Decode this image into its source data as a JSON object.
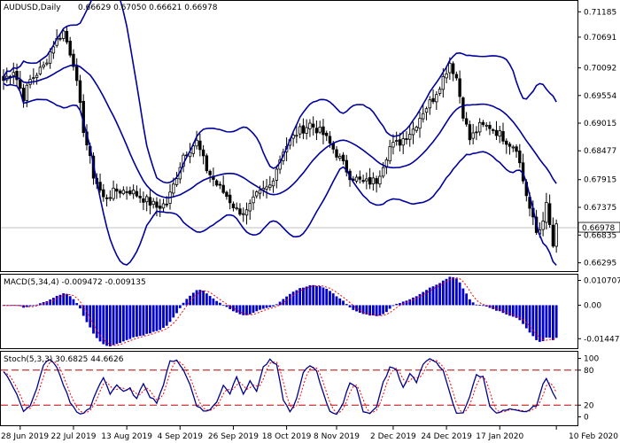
{
  "header": {
    "symbol_timeframe": "AUDUSD,Daily",
    "ohlc": "0.66629 0.67050 0.66621 0.66978"
  },
  "macd": {
    "label": "MACD(5,34,4) -0.009472 -0.009135"
  },
  "stoch": {
    "label": "Stoch(5,3,3) 30.6825 44.6626"
  },
  "colors": {
    "background": "#ffffff",
    "candle": "#000000",
    "bands": "#00009c",
    "macd_hist": "#0000c8",
    "signal": "#ff0000",
    "stoch_main": "#00008b",
    "stoch_levels": "#c00000",
    "current_price_line": "#c0c0c0"
  },
  "chart_data": [
    {
      "type": "candlestick",
      "name": "price",
      "bollinger_bands": true,
      "current_price_label": "0.66978",
      "current_price": 0.66978,
      "ylim": [
        0.6615,
        0.7138
      ],
      "y_ticks": [
        {
          "label": "0.71185",
          "value": 0.71185
        },
        {
          "label": "0.70691",
          "value": 0.70691
        },
        {
          "label": "0.70092",
          "value": 0.70092
        },
        {
          "label": "0.69554",
          "value": 0.69554
        },
        {
          "label": "0.69015",
          "value": 0.69015
        },
        {
          "label": "0.68477",
          "value": 0.68477
        },
        {
          "label": "0.67915",
          "value": 0.67915
        },
        {
          "label": "0.67375",
          "value": 0.67375
        },
        {
          "label": "0.66835",
          "value": 0.66835
        },
        {
          "label": "0.66295",
          "value": 0.66295
        }
      ],
      "x_ticks": [
        {
          "label": "28 Jun 2019",
          "index": 5
        },
        {
          "label": "22 Jul 2019",
          "index": 21
        },
        {
          "label": "13 Aug 2019",
          "index": 37
        },
        {
          "label": "4 Sep 2019",
          "index": 53
        },
        {
          "label": "26 Sep 2019",
          "index": 69
        },
        {
          "label": "18 Oct 2019",
          "index": 85
        },
        {
          "label": "8 Nov 2019",
          "index": 100
        },
        {
          "label": "2 Dec 2019",
          "index": 117
        },
        {
          "label": "24 Dec 2019",
          "index": 133
        },
        {
          "label": "17 Jan 2020",
          "index": 149
        },
        {
          "label": "10 Feb 2020",
          "index": 166
        }
      ],
      "close_keypoints": [
        [
          0,
          0.6985
        ],
        [
          3,
          0.7005
        ],
        [
          6,
          0.6952
        ],
        [
          8,
          0.6985
        ],
        [
          12,
          0.7012
        ],
        [
          15,
          0.7055
        ],
        [
          18,
          0.708
        ],
        [
          21,
          0.702
        ],
        [
          24,
          0.689
        ],
        [
          27,
          0.68
        ],
        [
          30,
          0.6755
        ],
        [
          34,
          0.677
        ],
        [
          38,
          0.677
        ],
        [
          42,
          0.6755
        ],
        [
          46,
          0.6738
        ],
        [
          49,
          0.6745
        ],
        [
          51,
          0.678
        ],
        [
          54,
          0.684
        ],
        [
          58,
          0.6865
        ],
        [
          61,
          0.6812
        ],
        [
          64,
          0.6782
        ],
        [
          67,
          0.676
        ],
        [
          70,
          0.6732
        ],
        [
          73,
          0.6728
        ],
        [
          76,
          0.676
        ],
        [
          80,
          0.678
        ],
        [
          84,
          0.685
        ],
        [
          88,
          0.6882
        ],
        [
          92,
          0.69
        ],
        [
          96,
          0.688
        ],
        [
          100,
          0.6842
        ],
        [
          104,
          0.68
        ],
        [
          108,
          0.6785
        ],
        [
          112,
          0.679
        ],
        [
          116,
          0.6855
        ],
        [
          119,
          0.6865
        ],
        [
          123,
          0.689
        ],
        [
          126,
          0.6925
        ],
        [
          129,
          0.695
        ],
        [
          132,
          0.699
        ],
        [
          134,
          0.702
        ],
        [
          136,
          0.699
        ],
        [
          138,
          0.692
        ],
        [
          140,
          0.687
        ],
        [
          143,
          0.6895
        ],
        [
          146,
          0.6895
        ],
        [
          149,
          0.688
        ],
        [
          152,
          0.6862
        ],
        [
          154,
          0.6855
        ],
        [
          156,
          0.679
        ],
        [
          158,
          0.6735
        ],
        [
          160,
          0.6688
        ],
        [
          161,
          0.6695
        ],
        [
          163,
          0.674
        ],
        [
          165,
          0.6662
        ],
        [
          166,
          0.6698
        ]
      ]
    },
    {
      "type": "bar",
      "name": "MACD(5,34,4)",
      "macd_value": -0.009472,
      "signal_value": -0.009135,
      "ylim": [
        -0.0182,
        0.0128
      ],
      "y_ticks": [
        {
          "label": "0.010707",
          "value": 0.010707
        },
        {
          "label": "0.00",
          "value": 0.0
        },
        {
          "label": "-0.014479",
          "value": -0.014479
        }
      ]
    },
    {
      "type": "line",
      "name": "Stoch(5,3,3)",
      "main_value": 30.6825,
      "signal_value": 44.6626,
      "ylim": [
        -13,
        110
      ],
      "levels": [
        20,
        80
      ],
      "y_ticks": [
        {
          "label": "100",
          "value": 100
        },
        {
          "label": "80",
          "value": 80
        },
        {
          "label": "20",
          "value": 20
        },
        {
          "label": "0",
          "value": 0
        }
      ],
      "main_keypoints": [
        [
          0,
          78
        ],
        [
          2,
          60
        ],
        [
          4,
          40
        ],
        [
          6,
          10
        ],
        [
          8,
          18
        ],
        [
          10,
          48
        ],
        [
          12,
          90
        ],
        [
          14,
          98
        ],
        [
          16,
          85
        ],
        [
          18,
          55
        ],
        [
          20,
          25
        ],
        [
          22,
          8
        ],
        [
          24,
          5
        ],
        [
          26,
          15
        ],
        [
          28,
          45
        ],
        [
          30,
          68
        ],
        [
          32,
          40
        ],
        [
          34,
          55
        ],
        [
          36,
          42
        ],
        [
          38,
          48
        ],
        [
          40,
          30
        ],
        [
          42,
          58
        ],
        [
          44,
          35
        ],
        [
          46,
          25
        ],
        [
          48,
          55
        ],
        [
          50,
          95
        ],
        [
          52,
          98
        ],
        [
          54,
          80
        ],
        [
          56,
          55
        ],
        [
          58,
          20
        ],
        [
          60,
          10
        ],
        [
          62,
          12
        ],
        [
          64,
          25
        ],
        [
          66,
          55
        ],
        [
          68,
          40
        ],
        [
          70,
          70
        ],
        [
          72,
          40
        ],
        [
          74,
          60
        ],
        [
          76,
          45
        ],
        [
          78,
          85
        ],
        [
          80,
          97
        ],
        [
          82,
          88
        ],
        [
          84,
          30
        ],
        [
          86,
          8
        ],
        [
          88,
          30
        ],
        [
          90,
          75
        ],
        [
          92,
          88
        ],
        [
          94,
          80
        ],
        [
          96,
          40
        ],
        [
          98,
          10
        ],
        [
          100,
          5
        ],
        [
          102,
          22
        ],
        [
          104,
          60
        ],
        [
          106,
          50
        ],
        [
          108,
          10
        ],
        [
          110,
          5
        ],
        [
          112,
          18
        ],
        [
          114,
          58
        ],
        [
          116,
          85
        ],
        [
          118,
          80
        ],
        [
          120,
          50
        ],
        [
          122,
          75
        ],
        [
          124,
          60
        ],
        [
          126,
          90
        ],
        [
          128,
          98
        ],
        [
          130,
          95
        ],
        [
          132,
          78
        ],
        [
          134,
          40
        ],
        [
          136,
          5
        ],
        [
          138,
          8
        ],
        [
          140,
          35
        ],
        [
          142,
          72
        ],
        [
          144,
          68
        ],
        [
          146,
          20
        ],
        [
          148,
          5
        ],
        [
          150,
          10
        ],
        [
          152,
          12
        ],
        [
          154,
          10
        ],
        [
          156,
          8
        ],
        [
          158,
          12
        ],
        [
          160,
          20
        ],
        [
          162,
          55
        ],
        [
          163,
          65
        ],
        [
          164,
          55
        ],
        [
          166,
          30
        ]
      ]
    }
  ]
}
